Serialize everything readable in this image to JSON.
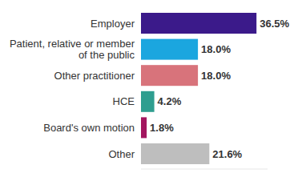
{
  "chart_data": {
    "type": "bar",
    "orientation": "horizontal",
    "categories": [
      "Employer",
      "Patient, relative or member of the public",
      "Other practitioner",
      "HCE",
      "Board's own motion",
      "Other"
    ],
    "values": [
      36.5,
      18.0,
      18.0,
      4.2,
      1.8,
      21.6
    ],
    "value_labels": [
      "36.5%",
      "18.0%",
      "18.0%",
      "4.2%",
      "1.8%",
      "21.6%"
    ],
    "colors": [
      "#3b1a8a",
      "#1ba6df",
      "#d8737b",
      "#2f9e8f",
      "#a3165f",
      "#bebebe"
    ],
    "xlim": [
      0,
      40
    ],
    "data_labels": true,
    "tick_labels": "y",
    "grid": false
  }
}
